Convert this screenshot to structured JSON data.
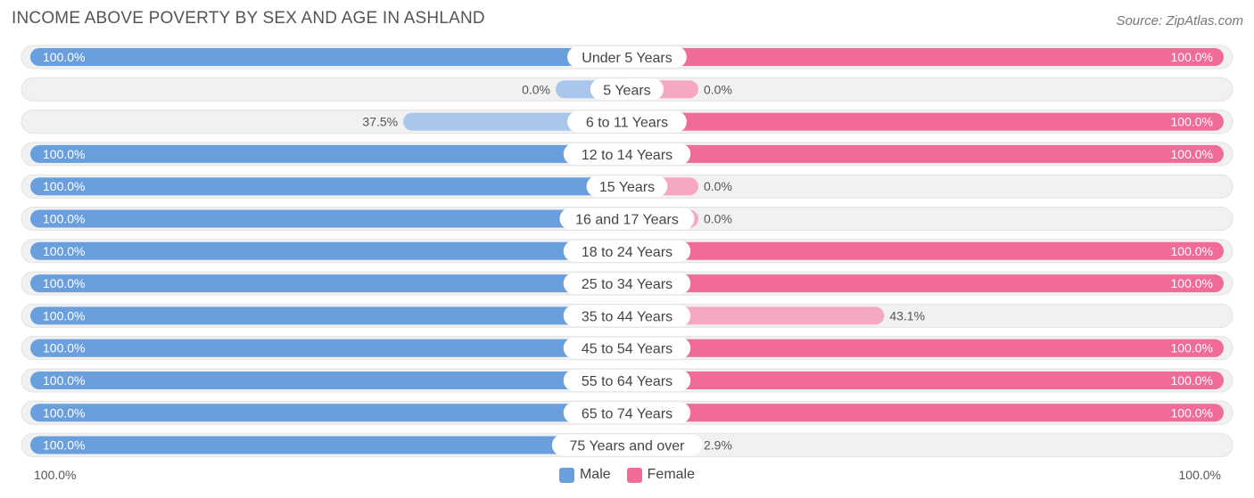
{
  "title": "INCOME ABOVE POVERTY BY SEX AND AGE IN ASHLAND",
  "source": "Source: ZipAtlas.com",
  "colors": {
    "male_full": "#6a9fdd",
    "male_light": "#a9c7ec",
    "female_full": "#f06b96",
    "female_light": "#f6a8c2",
    "track": "#f1f1f1"
  },
  "legend": {
    "male": "Male",
    "female": "Female"
  },
  "axis_left_label": "100.0%",
  "axis_right_label": "100.0%",
  "chart_data": {
    "type": "bar",
    "orientation": "horizontal-diverging",
    "categories": [
      "Under 5 Years",
      "5 Years",
      "6 to 11 Years",
      "12 to 14 Years",
      "15 Years",
      "16 and 17 Years",
      "18 to 24 Years",
      "25 to 34 Years",
      "35 to 44 Years",
      "45 to 54 Years",
      "55 to 64 Years",
      "65 to 74 Years",
      "75 Years and over"
    ],
    "series": [
      {
        "name": "Male",
        "values": [
          100.0,
          0.0,
          37.5,
          100.0,
          100.0,
          100.0,
          100.0,
          100.0,
          100.0,
          100.0,
          100.0,
          100.0,
          100.0
        ],
        "labels": [
          "100.0%",
          "0.0%",
          "37.5%",
          "100.0%",
          "100.0%",
          "100.0%",
          "100.0%",
          "100.0%",
          "100.0%",
          "100.0%",
          "100.0%",
          "100.0%",
          "100.0%"
        ]
      },
      {
        "name": "Female",
        "values": [
          100.0,
          0.0,
          100.0,
          100.0,
          0.0,
          0.0,
          100.0,
          100.0,
          43.1,
          100.0,
          100.0,
          100.0,
          2.9
        ],
        "labels": [
          "100.0%",
          "0.0%",
          "100.0%",
          "100.0%",
          "0.0%",
          "0.0%",
          "100.0%",
          "100.0%",
          "43.1%",
          "100.0%",
          "100.0%",
          "100.0%",
          "2.9%"
        ]
      }
    ],
    "xlim": [
      0,
      100
    ],
    "legend_position": "bottom-center"
  }
}
